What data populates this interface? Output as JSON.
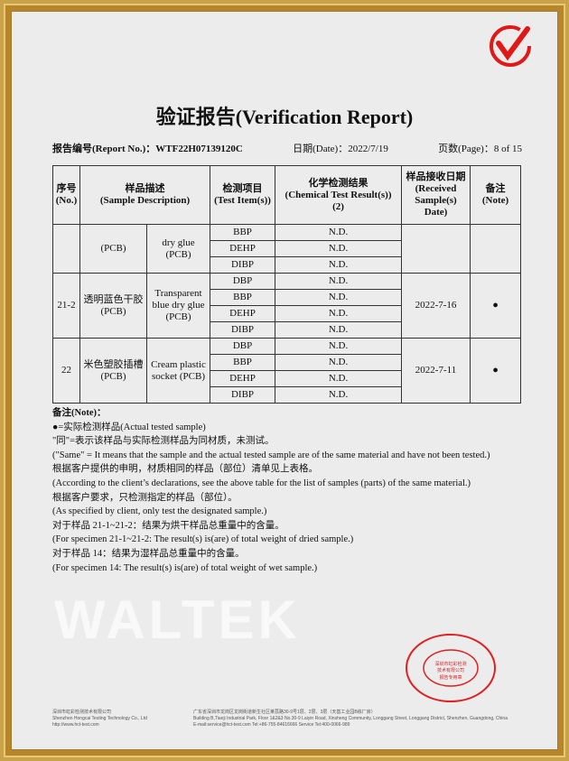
{
  "header": {
    "title": "验证报告(Verification Report)",
    "report_no_label": "报告编号(Report No.)：",
    "report_no": "WTF22H07139120C",
    "date": "日期(Date)：2022/7/19",
    "page": "页数(Page)：8 of 15"
  },
  "watermark": "WALTEK",
  "table": {
    "headers": {
      "no": "序号\n(No.)",
      "desc": "样品描述\n(Sample Description)",
      "item": "检测项目\n(Test Item(s))",
      "result": "化学检测结果\n(Chemical Test Result(s))\n(2)",
      "date": "样品接收日期\n(Received Sample(s) Date)",
      "note": "备注\n(Note)"
    },
    "groups": [
      {
        "no": "",
        "desc_cn": "(PCB)",
        "desc_en": "dry glue (PCB)",
        "items": [
          "BBP",
          "DEHP",
          "DIBP"
        ],
        "results": [
          "N.D.",
          "N.D.",
          "N.D."
        ],
        "date": "",
        "note": ""
      },
      {
        "no": "21-2",
        "desc_cn": "透明蓝色干胶\n(PCB)",
        "desc_en": "Transparent blue dry glue (PCB)",
        "items": [
          "DBP",
          "BBP",
          "DEHP",
          "DIBP"
        ],
        "results": [
          "N.D.",
          "N.D.",
          "N.D.",
          "N.D."
        ],
        "date": "2022-7-16",
        "note": "●"
      },
      {
        "no": "22",
        "desc_cn": "米色塑胶插槽\n(PCB)",
        "desc_en": "Cream plastic socket (PCB)",
        "items": [
          "DBP",
          "BBP",
          "DEHP",
          "DIBP"
        ],
        "results": [
          "N.D.",
          "N.D.",
          "N.D.",
          "N.D."
        ],
        "date": "2022-7-11",
        "note": "●"
      }
    ]
  },
  "notes": {
    "title": "备注(Note)：",
    "lines": [
      "●=实际检测样品(Actual tested sample)",
      "\"同\"=表示该样品与实际检测样品为同材质，未测试。",
      "(\"Same\" = It means that the sample and the actual tested sample are of the same material and have not been tested.)",
      "根据客户提供的申明，材质相同的样品（部位）清单见上表格。",
      "(According to the client’s declarations, see the above table for the list of samples (parts) of the same material.)",
      "根据客户要求，只检测指定的样品（部位）。",
      "(As specified by client, only test the designated sample.)",
      "对于样品 21-1~21-2：结果为烘干样品总重量中的含量。",
      "(For specimen 21-1~21-2: The result(s) is(are) of total weight of dried sample.)",
      "对于样品 14：结果为湿样品总重量中的含量。",
      "(For specimen 14: The result(s) is(are) of total weight of wet sample.)"
    ]
  },
  "footer": {
    "col1": [
      "深圳市虹彩检测技术有限公司",
      "Shenzhen Hongcai Testing Technology Co., Ltd",
      "http://www.hct-test.com"
    ],
    "col2": [
      "广东省深圳市龙岗区龙岗街道新生社区莱荔路30-9号1层、2层、3层（天基工业园B栋厂房）",
      "Building B,Tianji Industrial Park, Floor 1&2&3 No.30-9 Laiyin Road, Xinsheng Community, Longgang Street, Longgang District, Shenzhen, Guangdong, China",
      "E-mail:service@hct-test.com    Tel:+86-755-84616666    Service Tel:400-0066-989"
    ]
  },
  "stamp": {
    "text": "Shenzhen Hongcai Testing Technology Co.,Ltd",
    "center": "深圳市虹彩检测技术有限公司 报告专用章"
  },
  "colors": {
    "frame": "#b8862a",
    "stamp": "#e02020",
    "logo": "#e01818"
  }
}
